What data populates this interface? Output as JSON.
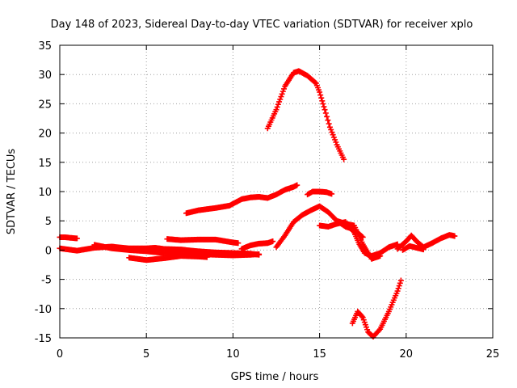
{
  "chart_data": {
    "type": "scatter",
    "title": "Day 148 of 2023, Sidereal Day-to-day VTEC variation (SDTVAR) for receiver xplo",
    "xlabel": "GPS time / hours",
    "ylabel": "SDTVAR / TECUs",
    "xlim": [
      0,
      25
    ],
    "ylim": [
      -15,
      35
    ],
    "xticks": [
      0,
      5,
      10,
      15,
      20,
      25
    ],
    "yticks": [
      -15,
      -10,
      -5,
      0,
      5,
      10,
      15,
      20,
      25,
      30,
      35
    ],
    "grid": true,
    "marker": "+",
    "color": "#ff0000",
    "series": [
      {
        "name": "track-1",
        "x": [
          0.0,
          0.3,
          0.6,
          1.0
        ],
        "y": [
          2.2,
          2.2,
          2.1,
          2.0
        ]
      },
      {
        "name": "track-2",
        "x": [
          0.0,
          0.5,
          1.0,
          2.0,
          3.0,
          4.0,
          5.0,
          5.5,
          6.0,
          7.0,
          8.0,
          9.0,
          10.0,
          11.0,
          11.5
        ],
        "y": [
          0.3,
          0.1,
          -0.1,
          0.4,
          0.6,
          0.3,
          0.3,
          0.4,
          0.2,
          0.1,
          -0.2,
          -0.4,
          -0.5,
          -0.6,
          -0.8
        ]
      },
      {
        "name": "track-3",
        "x": [
          2.0,
          3.0,
          4.0,
          5.0,
          6.0,
          7.0,
          8.0,
          9.0,
          10.0,
          11.0,
          11.5
        ],
        "y": [
          0.9,
          0.3,
          0.0,
          -0.2,
          -0.5,
          -0.6,
          -0.7,
          -0.8,
          -0.9,
          -0.8,
          -0.7
        ]
      },
      {
        "name": "track-4",
        "x": [
          4.0,
          5.0,
          6.0,
          7.0,
          8.0,
          8.5
        ],
        "y": [
          -1.3,
          -1.7,
          -1.4,
          -1.0,
          -1.1,
          -1.2
        ]
      },
      {
        "name": "track-5",
        "x": [
          6.2,
          7.0,
          8.0,
          9.0,
          10.0,
          10.3
        ],
        "y": [
          1.9,
          1.7,
          1.8,
          1.8,
          1.3,
          1.2
        ]
      },
      {
        "name": "track-6",
        "x": [
          7.3,
          8.0,
          9.0,
          9.8,
          10.5,
          11.0,
          11.5,
          12.0,
          12.5,
          13.0,
          13.5,
          13.7
        ],
        "y": [
          6.3,
          6.8,
          7.2,
          7.6,
          8.7,
          9.0,
          9.1,
          8.9,
          9.5,
          10.3,
          10.8,
          11.1
        ]
      },
      {
        "name": "track-7",
        "x": [
          10.5,
          11.0,
          11.5,
          12.0,
          12.3
        ],
        "y": [
          0.2,
          0.8,
          1.1,
          1.2,
          1.5
        ]
      },
      {
        "name": "track-8",
        "x": [
          12.5,
          13.0,
          13.5,
          14.0,
          14.5,
          15.0,
          15.5,
          16.0,
          16.5,
          17.0,
          17.5
        ],
        "y": [
          0.5,
          2.5,
          4.8,
          6.0,
          6.8,
          7.5,
          6.5,
          5.0,
          4.0,
          3.5,
          2.2
        ]
      },
      {
        "name": "track-9",
        "x": [
          14.3,
          14.6,
          15.0,
          15.4,
          15.7
        ],
        "y": [
          9.5,
          10.0,
          10.0,
          9.9,
          9.6
        ]
      },
      {
        "name": "track-10",
        "x": [
          12.0,
          12.5,
          13.0,
          13.5,
          13.8,
          14.3,
          14.8,
          15.0,
          15.3,
          15.6,
          16.0,
          16.4
        ],
        "y": [
          20.8,
          24.0,
          28.0,
          30.3,
          30.6,
          29.8,
          28.5,
          27.0,
          24.0,
          21.0,
          18.0,
          15.5
        ]
      },
      {
        "name": "track-11",
        "x": [
          15.0,
          15.5,
          16.0,
          16.5,
          17.0,
          17.3,
          17.6,
          18.0,
          18.5,
          19.0,
          19.5
        ],
        "y": [
          4.2,
          4.0,
          4.5,
          4.8,
          3.0,
          1.0,
          -0.5,
          -1.0,
          -0.5,
          0.5,
          1.0
        ]
      },
      {
        "name": "track-12",
        "x": [
          16.0,
          16.5,
          17.0,
          17.5,
          18.0,
          18.5
        ],
        "y": [
          5.0,
          4.5,
          4.2,
          1.0,
          -1.5,
          -1.0
        ]
      },
      {
        "name": "track-13",
        "x": [
          19.5,
          20.0,
          20.3,
          20.6,
          21.0,
          21.5,
          22.0,
          22.5,
          22.8
        ],
        "y": [
          0.2,
          1.5,
          2.5,
          1.5,
          0.5,
          1.2,
          2.0,
          2.6,
          2.4
        ]
      },
      {
        "name": "track-14",
        "x": [
          19.8,
          20.2,
          20.6,
          21.0
        ],
        "y": [
          0.0,
          0.7,
          0.4,
          0.1
        ]
      },
      {
        "name": "track-15",
        "x": [
          16.9,
          17.2,
          17.5,
          17.8,
          18.1,
          18.5,
          19.0,
          19.5,
          19.7
        ],
        "y": [
          -12.5,
          -10.5,
          -11.5,
          -14.0,
          -14.8,
          -13.5,
          -10.5,
          -7.0,
          -5.2
        ]
      }
    ]
  }
}
